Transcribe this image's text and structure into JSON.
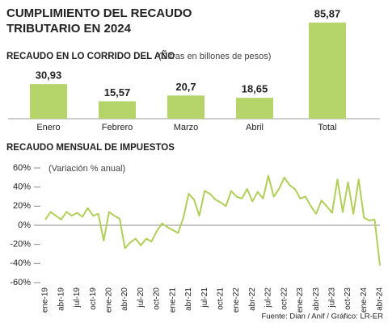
{
  "title": [
    "CUMPLIMIENTO DEL RECAUDO",
    "TRIBUTARIO EN 2024"
  ],
  "source": "Fuente: Dian / Anif / Gráfico: LR-ER",
  "chart_data": [
    {
      "type": "bar",
      "title": "RECAUDO EN LO CORRIDO DEL AÑO",
      "subtitle": "(Cifras en billones de pesos)",
      "categories": [
        "Enero",
        "Febrero",
        "Marzo",
        "Abril",
        "Total"
      ],
      "values": [
        30.93,
        15.57,
        20.7,
        18.65,
        85.87
      ],
      "value_labels": [
        "30,93",
        "15,57",
        "20,7",
        "18,65",
        "85,87"
      ],
      "color": "#b5d46a"
    },
    {
      "type": "line",
      "title": "RECAUDO MENSUAL DE IMPUESTOS",
      "subtitle": "(Variación % anual)",
      "categories": [
        "ene-19",
        null,
        null,
        "abr-19",
        null,
        null,
        "jul-19",
        null,
        null,
        "oct-19",
        null,
        null,
        "ene-20",
        null,
        null,
        "abr-20",
        null,
        null,
        "jul-20",
        null,
        null,
        "oct-20",
        null,
        null,
        "ene-21",
        null,
        null,
        "abr-21",
        null,
        null,
        "jul-21",
        null,
        null,
        "oct-21",
        null,
        null,
        "ene-22",
        null,
        null,
        "abr-22",
        null,
        null,
        "jul-22",
        null,
        null,
        "oct-22",
        null,
        null,
        "ene-23",
        null,
        null,
        "abr-23",
        null,
        null,
        "jul-23",
        null,
        null,
        "oct-23",
        null,
        null,
        "ene-24",
        null,
        null,
        "abr-24"
      ],
      "series": [
        {
          "name": "Variación",
          "color": "#b0cf58",
          "values": [
            6,
            14,
            10,
            6,
            14,
            10,
            13,
            9,
            18,
            10,
            12,
            -16,
            14,
            10,
            7,
            -24,
            -18,
            -14,
            -21,
            -14,
            -17,
            -6,
            2,
            -2,
            -5,
            -8,
            8,
            33,
            27,
            10,
            36,
            33,
            27,
            24,
            20,
            36,
            30,
            28,
            38,
            25,
            35,
            28,
            52,
            30,
            38,
            50,
            42,
            38,
            28,
            30,
            20,
            12,
            26,
            20,
            13,
            48,
            14,
            45,
            12,
            48,
            8,
            5,
            6,
            -42
          ]
        }
      ],
      "ylim": [
        -60,
        60
      ],
      "yticks": [
        {
          "value": 60,
          "label": "60%"
        },
        {
          "value": 40,
          "label": "40%"
        },
        {
          "value": 20,
          "label": "20%"
        },
        {
          "value": 0,
          "label": "0%"
        },
        {
          "value": -20,
          "label": "-20%"
        },
        {
          "value": -40,
          "label": "-40%"
        },
        {
          "value": -60,
          "label": "-60%"
        }
      ]
    }
  ]
}
